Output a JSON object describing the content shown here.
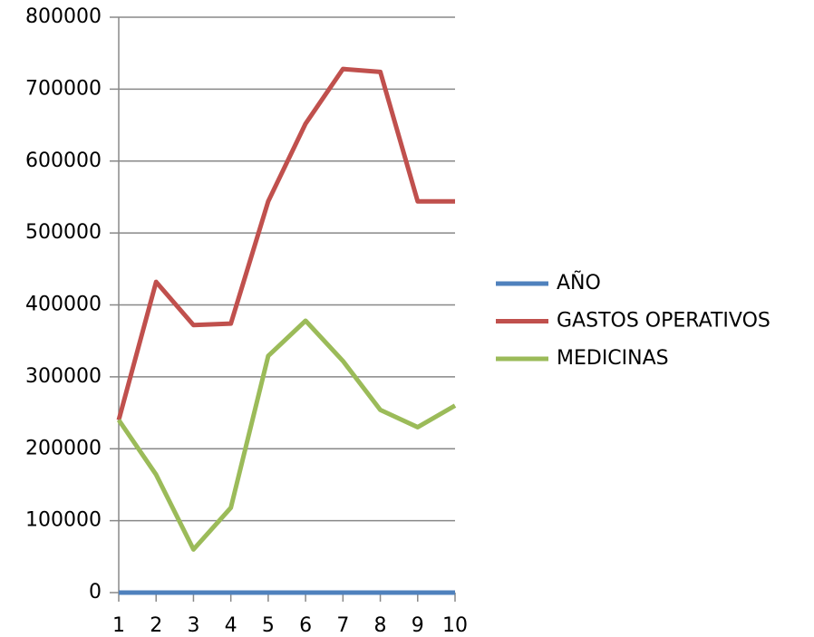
{
  "chart_data": {
    "type": "line",
    "x": [
      1,
      2,
      3,
      4,
      5,
      6,
      7,
      8,
      9,
      10
    ],
    "xlim": [
      1,
      10
    ],
    "xticks": [
      1,
      2,
      3,
      4,
      5,
      6,
      7,
      8,
      9,
      10
    ],
    "ylim": [
      0,
      800000
    ],
    "yticks": [
      0,
      100000,
      200000,
      300000,
      400000,
      500000,
      600000,
      700000,
      800000
    ],
    "grid": true,
    "legend": "right",
    "series": [
      {
        "name": "AÑO",
        "color": "#4f81bd",
        "values": [
          0,
          0,
          0,
          0,
          0,
          0,
          0,
          0,
          0,
          0
        ]
      },
      {
        "name": "GASTOS OPERATIVOS",
        "color": "#c0504d",
        "values": [
          240000,
          432000,
          372000,
          374000,
          544000,
          652000,
          728000,
          724000,
          544000,
          544000
        ]
      },
      {
        "name": "MEDICINAS",
        "color": "#9bbb59",
        "values": [
          240000,
          164000,
          60000,
          118000,
          329000,
          378000,
          322000,
          254000,
          230000,
          260000
        ]
      }
    ]
  }
}
